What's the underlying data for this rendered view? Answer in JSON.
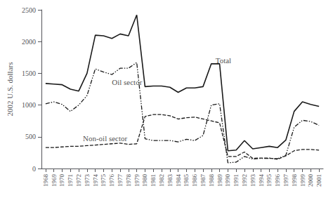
{
  "chart_data": {
    "type": "line",
    "x": [
      1968,
      1969,
      1970,
      1971,
      1972,
      1973,
      1974,
      1975,
      1976,
      1977,
      1978,
      1979,
      1980,
      1981,
      1982,
      1983,
      1984,
      1985,
      1986,
      1987,
      1988,
      1989,
      1990,
      1991,
      1992,
      1993,
      1994,
      1995,
      1996,
      1997,
      1998,
      1999,
      2000,
      2001
    ],
    "series": [
      {
        "name": "Total",
        "color": "#1a1a1a",
        "line_style": "solid",
        "values": [
          1340,
          1330,
          1320,
          1250,
          1220,
          1500,
          2100,
          2090,
          2050,
          2120,
          2090,
          2420,
          1290,
          1300,
          1300,
          1280,
          1200,
          1270,
          1270,
          1290,
          1650,
          1650,
          280,
          290,
          440,
          310,
          330,
          350,
          330,
          450,
          900,
          1050,
          1010,
          980
        ]
      },
      {
        "name": "Oil sector",
        "color": "#1a1a1a",
        "line_style": "dashdot",
        "values": [
          1020,
          1050,
          1010,
          900,
          1000,
          1150,
          1570,
          1520,
          1480,
          1580,
          1580,
          1670,
          470,
          440,
          440,
          440,
          420,
          460,
          440,
          520,
          1000,
          1020,
          90,
          100,
          190,
          150,
          160,
          160,
          155,
          210,
          650,
          760,
          740,
          680
        ]
      },
      {
        "name": "Non-oil sector",
        "color": "#1a1a1a",
        "line_style": "dashed",
        "values": [
          330,
          330,
          340,
          350,
          350,
          360,
          370,
          380,
          390,
          400,
          380,
          390,
          820,
          850,
          850,
          830,
          780,
          800,
          810,
          780,
          750,
          720,
          190,
          190,
          260,
          160,
          165,
          165,
          145,
          200,
          280,
          300,
          300,
          290
        ]
      }
    ],
    "ylabel": "2002 U.S. dollars",
    "xlim": [
      1967.5,
      2001.5
    ],
    "xticks": [
      1968,
      1969,
      1970,
      1971,
      1972,
      1973,
      1974,
      1975,
      1976,
      1977,
      1978,
      1979,
      1980,
      1981,
      1982,
      1983,
      1984,
      1985,
      1986,
      1987,
      1988,
      1989,
      1990,
      1991,
      1992,
      1993,
      1994,
      1995,
      1996,
      1997,
      1998,
      1999,
      2000,
      2001
    ],
    "ylim": [
      0,
      2500
    ],
    "yticks": [
      0,
      500,
      1000,
      1500,
      2000,
      2500
    ],
    "grid": false,
    "annotations": [
      {
        "text": "Total",
        "x": 1988.5,
        "y": 1700
      },
      {
        "text": "Oil sector",
        "x": 1976.0,
        "y": 1360
      },
      {
        "text": "Non-oil sector",
        "x": 1972.5,
        "y": 480
      }
    ]
  }
}
